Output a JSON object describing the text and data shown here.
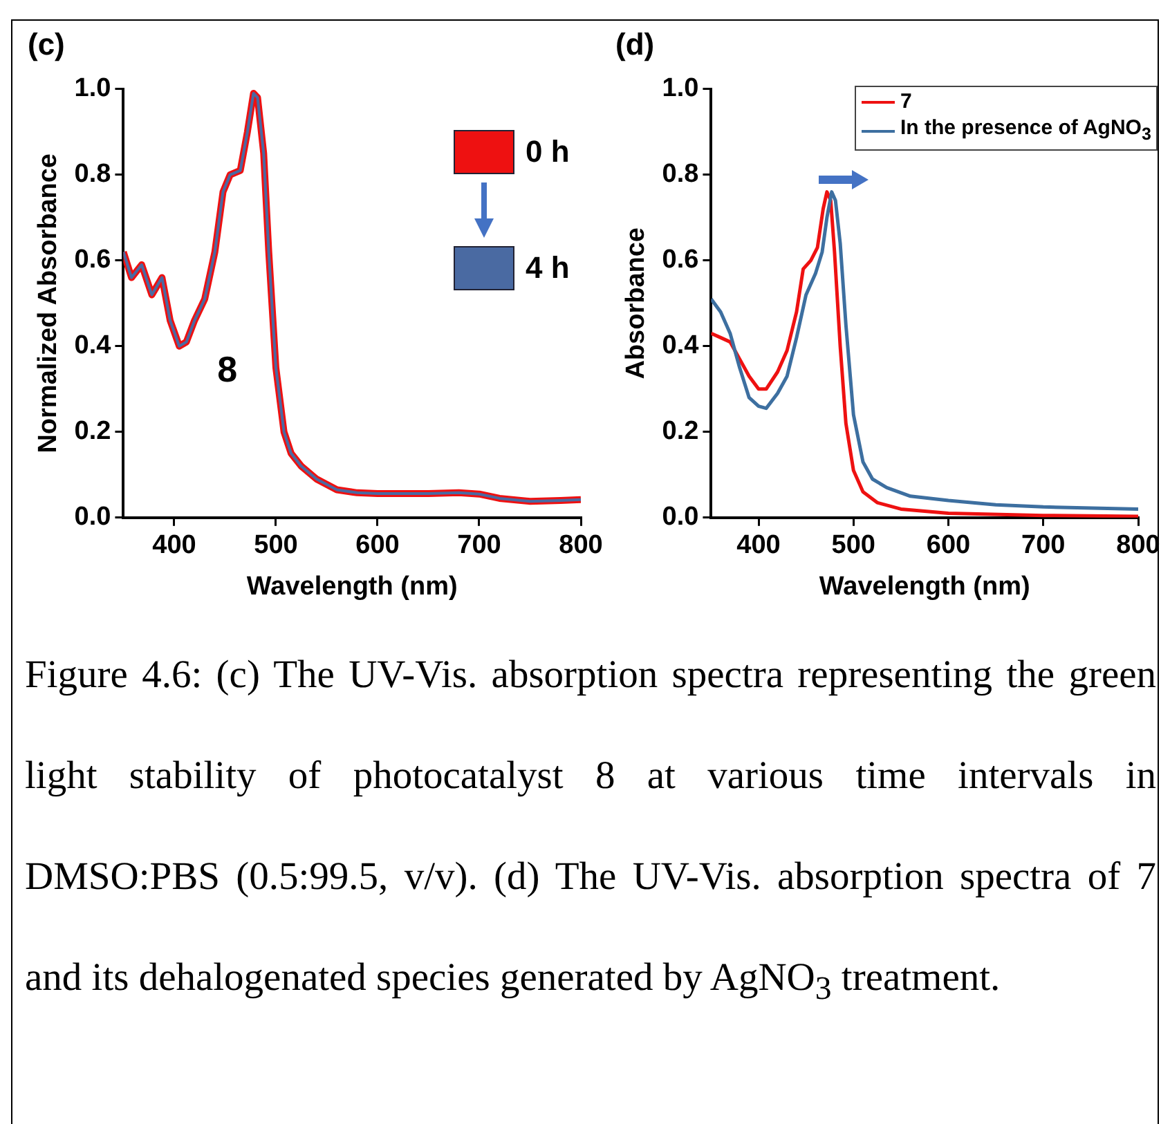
{
  "chart_data": [
    {
      "type": "line",
      "title": "(c)",
      "xlabel": "Wavelength (nm)",
      "ylabel": "Normalized Absorbance",
      "xlim": [
        350,
        800
      ],
      "xticks": [
        400,
        500,
        600,
        700,
        800
      ],
      "ylim": [
        0,
        1
      ],
      "yticks": [
        {
          "value": 0,
          "label": "0.0"
        },
        {
          "value": 0.2,
          "label": "0.2"
        },
        {
          "value": 0.4,
          "label": "0.4"
        },
        {
          "value": 0.6,
          "label": "0.6"
        },
        {
          "value": 0.8,
          "label": "0.8"
        },
        {
          "value": 1,
          "label": "1.0"
        }
      ],
      "grid": false,
      "legend": "right",
      "marker": "none",
      "line_style": "solid",
      "x": [
        350,
        358,
        368,
        378,
        388,
        396,
        405,
        412,
        420,
        430,
        440,
        448,
        455,
        465,
        472,
        478,
        482,
        488,
        493,
        500,
        508,
        515,
        525,
        540,
        560,
        580,
        600,
        650,
        680,
        700,
        720,
        750,
        780,
        800
      ],
      "series": [
        {
          "name": "0 h",
          "color": "#ee1111",
          "values": [
            0.62,
            0.56,
            0.59,
            0.52,
            0.56,
            0.46,
            0.4,
            0.41,
            0.46,
            0.51,
            0.62,
            0.76,
            0.8,
            0.81,
            0.9,
            0.99,
            0.98,
            0.85,
            0.62,
            0.35,
            0.2,
            0.15,
            0.12,
            0.09,
            0.065,
            0.058,
            0.056,
            0.056,
            0.058,
            0.055,
            0.045,
            0.038,
            0.04,
            0.042
          ]
        },
        {
          "name": "4 h",
          "color": "#4a6aa2",
          "values": [
            0.62,
            0.56,
            0.59,
            0.52,
            0.56,
            0.46,
            0.4,
            0.41,
            0.46,
            0.51,
            0.62,
            0.76,
            0.8,
            0.81,
            0.9,
            0.99,
            0.98,
            0.85,
            0.62,
            0.35,
            0.2,
            0.15,
            0.12,
            0.09,
            0.065,
            0.058,
            0.056,
            0.056,
            0.058,
            0.055,
            0.045,
            0.038,
            0.04,
            0.042
          ]
        }
      ],
      "annotations": [
        "8"
      ]
    },
    {
      "type": "line",
      "title": "(d)",
      "xlabel": "Wavelength (nm)",
      "ylabel": "Absorbance",
      "xlim": [
        350,
        800
      ],
      "xticks": [
        400,
        500,
        600,
        700,
        800
      ],
      "ylim": [
        0,
        1
      ],
      "yticks": [
        {
          "value": 0,
          "label": "0.0"
        },
        {
          "value": 0.2,
          "label": "0.2"
        },
        {
          "value": 0.4,
          "label": "0.4"
        },
        {
          "value": 0.6,
          "label": "0.6"
        },
        {
          "value": 0.8,
          "label": "0.8"
        },
        {
          "value": 1,
          "label": "1.0"
        }
      ],
      "grid": false,
      "legend": "top right",
      "marker": "none",
      "line_style": "solid",
      "series": [
        {
          "name": "7",
          "color": "#ee1111",
          "x": [
            350,
            360,
            370,
            380,
            390,
            400,
            408,
            420,
            430,
            440,
            447,
            455,
            462,
            468,
            472,
            476,
            480,
            486,
            492,
            500,
            510,
            525,
            550,
            600,
            700,
            800
          ],
          "values": [
            0.43,
            0.42,
            0.41,
            0.37,
            0.33,
            0.3,
            0.3,
            0.34,
            0.39,
            0.48,
            0.58,
            0.6,
            0.63,
            0.72,
            0.76,
            0.74,
            0.62,
            0.4,
            0.22,
            0.11,
            0.06,
            0.035,
            0.02,
            0.01,
            0.005,
            0.003
          ]
        },
        {
          "name": "In the presence of AgNO$_{3}$",
          "color": "#3d6fa0",
          "x": [
            350,
            360,
            370,
            380,
            390,
            400,
            408,
            420,
            430,
            440,
            450,
            460,
            467,
            472,
            477,
            481,
            486,
            492,
            500,
            510,
            520,
            535,
            560,
            600,
            650,
            700,
            800
          ],
          "values": [
            0.51,
            0.48,
            0.43,
            0.35,
            0.28,
            0.26,
            0.255,
            0.29,
            0.33,
            0.42,
            0.52,
            0.57,
            0.62,
            0.7,
            0.76,
            0.74,
            0.64,
            0.45,
            0.24,
            0.13,
            0.09,
            0.07,
            0.05,
            0.04,
            0.03,
            0.025,
            0.02
          ]
        }
      ],
      "annotations": [
        "Figure 4.6: (c) The UV-Vis. absorption spectra representing the green light stability of photocatalyst 8 at various time intervals in DMSO:PBS (0.5:99.5, v/v). (d) The UV-Vis. absorption spectra of 7 and its dehalogenated species generated by AgNO$_{3}$ treatment."
      ]
    }
  ]
}
